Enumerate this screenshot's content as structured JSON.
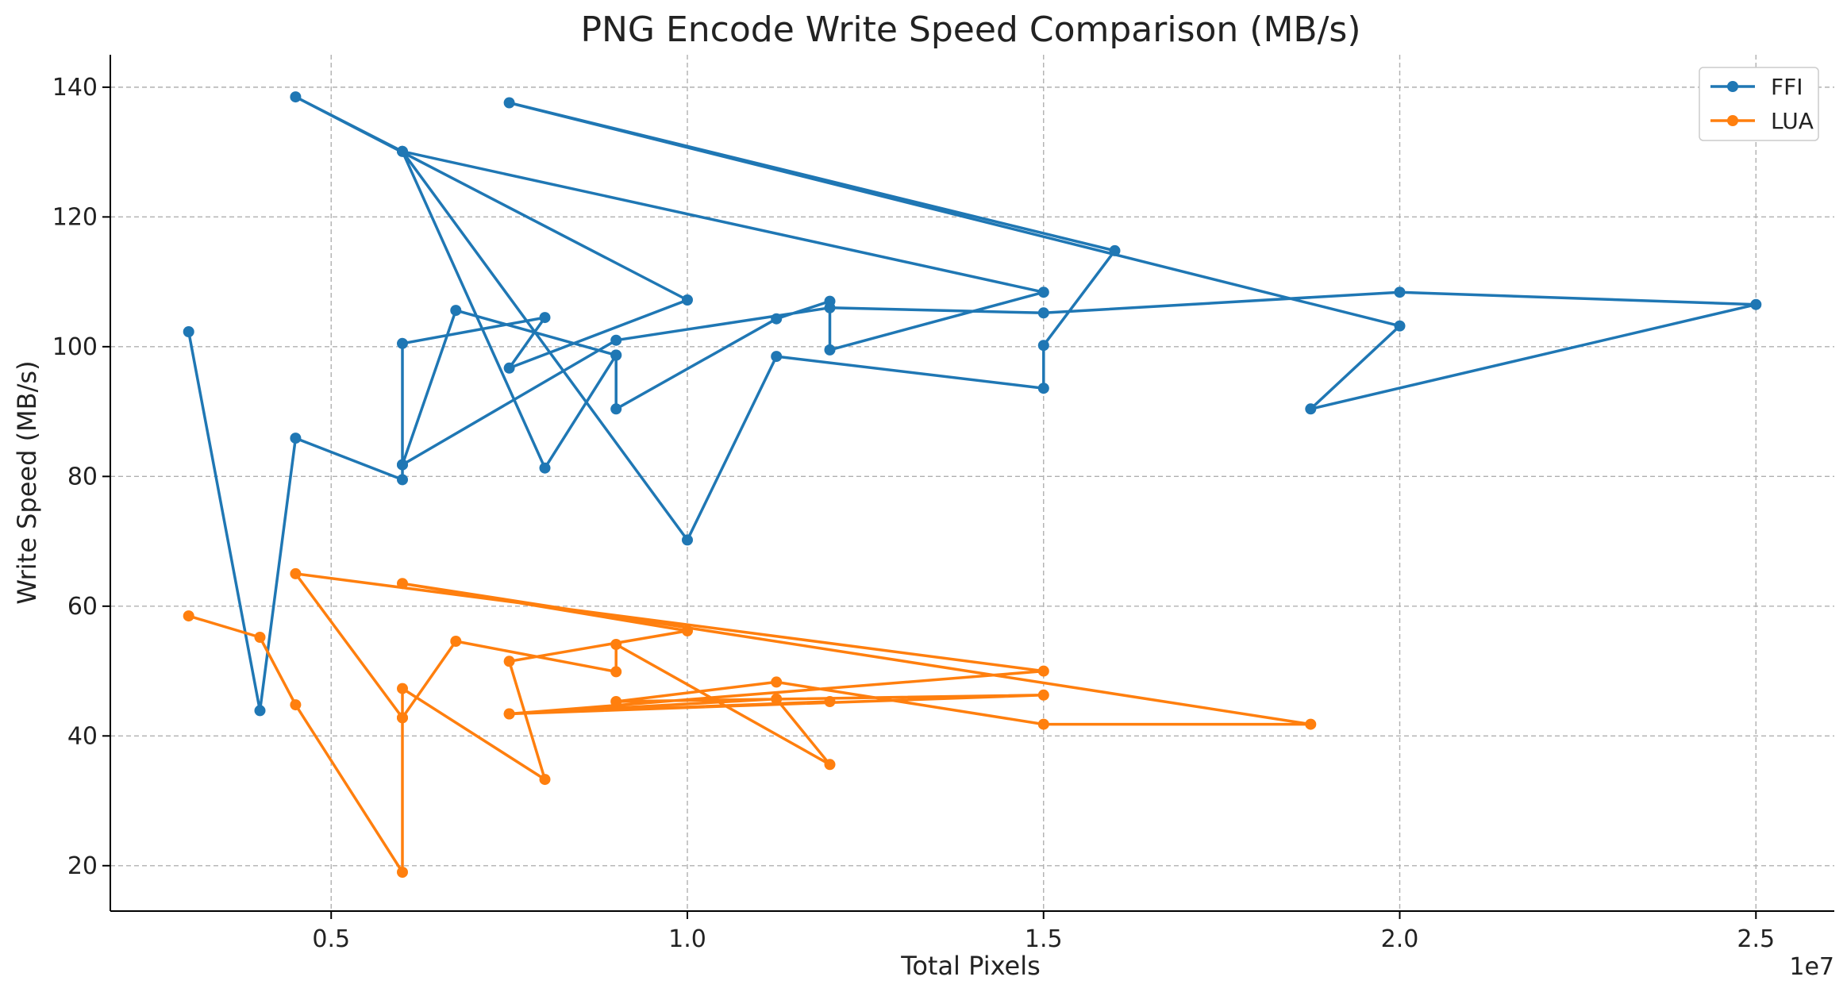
{
  "chart_data": {
    "type": "line",
    "title": "PNG Encode Write Speed Comparison (MB/s)",
    "xlabel": "Total Pixels",
    "ylabel": "Write Speed (MB/s)",
    "x_offset_label": "1e7",
    "xlim": [
      1900000,
      26100000
    ],
    "ylim": [
      13,
      145
    ],
    "x_ticks": [
      0.5,
      1.0,
      1.5,
      2.0,
      2.5
    ],
    "x_tick_labels": [
      "0.5",
      "1.0",
      "1.5",
      "2.0",
      "2.5"
    ],
    "y_ticks": [
      20,
      40,
      60,
      80,
      100,
      120,
      140
    ],
    "y_tick_labels": [
      "20",
      "40",
      "60",
      "80",
      "100",
      "120",
      "140"
    ],
    "grid": true,
    "legend_position": "top-right",
    "series": [
      {
        "name": "FFI",
        "color": "#1f77b4",
        "points": [
          [
            3000000,
            102.3
          ],
          [
            4000000,
            43.9
          ],
          [
            4500000,
            85.9
          ],
          [
            6000000,
            79.5
          ],
          [
            6000000,
            81.8
          ],
          [
            6000000,
            100.5
          ],
          [
            8000000,
            104.5
          ],
          [
            7500000,
            96.7
          ],
          [
            10000000,
            107.2
          ],
          [
            4500000,
            138.5
          ],
          [
            6000000,
            130.1
          ],
          [
            8000000,
            81.3
          ],
          [
            9000000,
            98.7
          ],
          [
            9000000,
            90.4
          ],
          [
            11250000,
            104.3
          ],
          [
            12000000,
            107.0
          ],
          [
            12000000,
            99.5
          ],
          [
            15000000,
            108.4
          ],
          [
            6000000,
            130.1
          ],
          [
            10000000,
            70.2
          ],
          [
            11250000,
            98.5
          ],
          [
            15000000,
            93.6
          ],
          [
            15000000,
            100.2
          ],
          [
            16000000,
            114.8
          ],
          [
            7500000,
            137.6
          ],
          [
            20000000,
            103.2
          ],
          [
            18750000,
            90.4
          ],
          [
            25000000,
            106.5
          ],
          [
            20000000,
            108.4
          ],
          [
            15000000,
            105.2
          ],
          [
            12000000,
            106.0
          ],
          [
            9000000,
            101.0
          ],
          [
            6000000,
            81.8
          ],
          [
            6750000,
            105.6
          ],
          [
            9000000,
            98.7
          ]
        ]
      },
      {
        "name": "LUA",
        "color": "#ff7f0e",
        "points": [
          [
            3000000,
            58.5
          ],
          [
            4000000,
            55.2
          ],
          [
            4500000,
            44.8
          ],
          [
            6000000,
            19.0
          ],
          [
            6000000,
            42.8
          ],
          [
            6750000,
            54.6
          ],
          [
            9000000,
            49.9
          ],
          [
            9000000,
            54.1
          ],
          [
            12000000,
            35.6
          ],
          [
            11250000,
            45.7
          ],
          [
            7500000,
            43.4
          ],
          [
            15000000,
            46.3
          ],
          [
            9000000,
            45.3
          ],
          [
            11250000,
            48.3
          ],
          [
            15000000,
            41.8
          ],
          [
            18750000,
            41.8
          ],
          [
            6000000,
            63.5
          ],
          [
            10000000,
            56.2
          ],
          [
            7500000,
            51.5
          ],
          [
            8000000,
            33.3
          ],
          [
            6000000,
            47.3
          ],
          [
            6000000,
            42.8
          ],
          [
            4500000,
            65.0
          ],
          [
            15000000,
            50.0
          ],
          [
            7500000,
            43.4
          ],
          [
            12000000,
            45.3
          ]
        ]
      }
    ]
  }
}
